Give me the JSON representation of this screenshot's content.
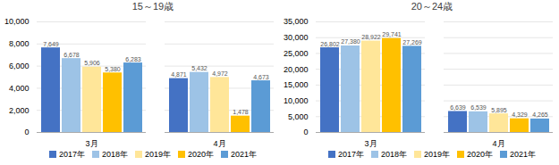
{
  "chart_data": [
    {
      "type": "bar",
      "title": "15～19歳",
      "categories": [
        "3月",
        "4月"
      ],
      "series": [
        {
          "name": "2017年",
          "color": "#4472c4",
          "values": [
            7649,
            4871
          ],
          "value_labels": [
            "7,649",
            "4,871"
          ]
        },
        {
          "name": "2018年",
          "color": "#9dc3e6",
          "values": [
            6678,
            5432
          ],
          "value_labels": [
            "6,678",
            "5,432"
          ]
        },
        {
          "name": "2019年",
          "color": "#ffe699",
          "values": [
            5906,
            4972
          ],
          "value_labels": [
            "5,906",
            "4,972"
          ]
        },
        {
          "name": "2020年",
          "color": "#ffc000",
          "values": [
            5380,
            1478
          ],
          "value_labels": [
            "5,380",
            "1,478"
          ]
        },
        {
          "name": "2021年",
          "color": "#5b9bd5",
          "values": [
            6283,
            4673
          ],
          "value_labels": [
            "6,283",
            "4,673"
          ]
        }
      ],
      "ylim": [
        0,
        10000
      ],
      "yticks": [
        0,
        {
          "value": 2000,
          "label": "2,000"
        },
        {
          "value": 4000,
          "label": "4,000"
        },
        {
          "value": 6000,
          "label": "6,000"
        },
        {
          "value": 8000,
          "label": "8,000"
        },
        {
          "value": 10000,
          "label": "10,000"
        }
      ],
      "grid": true,
      "data_labels": true,
      "legend": "bottom"
    },
    {
      "type": "bar",
      "title": "20～24歳",
      "categories": [
        "3月",
        "4月"
      ],
      "series": [
        {
          "name": "2017年",
          "color": "#4472c4",
          "values": [
            26802,
            6639
          ],
          "value_labels": [
            "26,802",
            "6,639"
          ]
        },
        {
          "name": "2018年",
          "color": "#9dc3e6",
          "values": [
            27380,
            6539
          ],
          "value_labels": [
            "27,380",
            "6,539"
          ]
        },
        {
          "name": "2019年",
          "color": "#ffe699",
          "values": [
            28922,
            5895
          ],
          "value_labels": [
            "28,922",
            "5,895"
          ]
        },
        {
          "name": "2020年",
          "color": "#ffc000",
          "values": [
            29741,
            4329
          ],
          "value_labels": [
            "29,741",
            "4,329"
          ]
        },
        {
          "name": "2021年",
          "color": "#5b9bd5",
          "values": [
            27269,
            4265
          ],
          "value_labels": [
            "27,269",
            "4,265"
          ]
        }
      ],
      "ylim": [
        0,
        35000
      ],
      "yticks": [
        0,
        {
          "value": 5000,
          "label": "5,000"
        },
        {
          "value": 10000,
          "label": "10,000"
        },
        {
          "value": 15000,
          "label": "15,000"
        },
        {
          "value": 20000,
          "label": "20,000"
        },
        {
          "value": 25000,
          "label": "25,000"
        },
        {
          "value": 30000,
          "label": "30,000"
        },
        {
          "value": 35000,
          "label": "35,000"
        }
      ],
      "grid": true,
      "data_labels": true,
      "legend": "bottom"
    }
  ]
}
